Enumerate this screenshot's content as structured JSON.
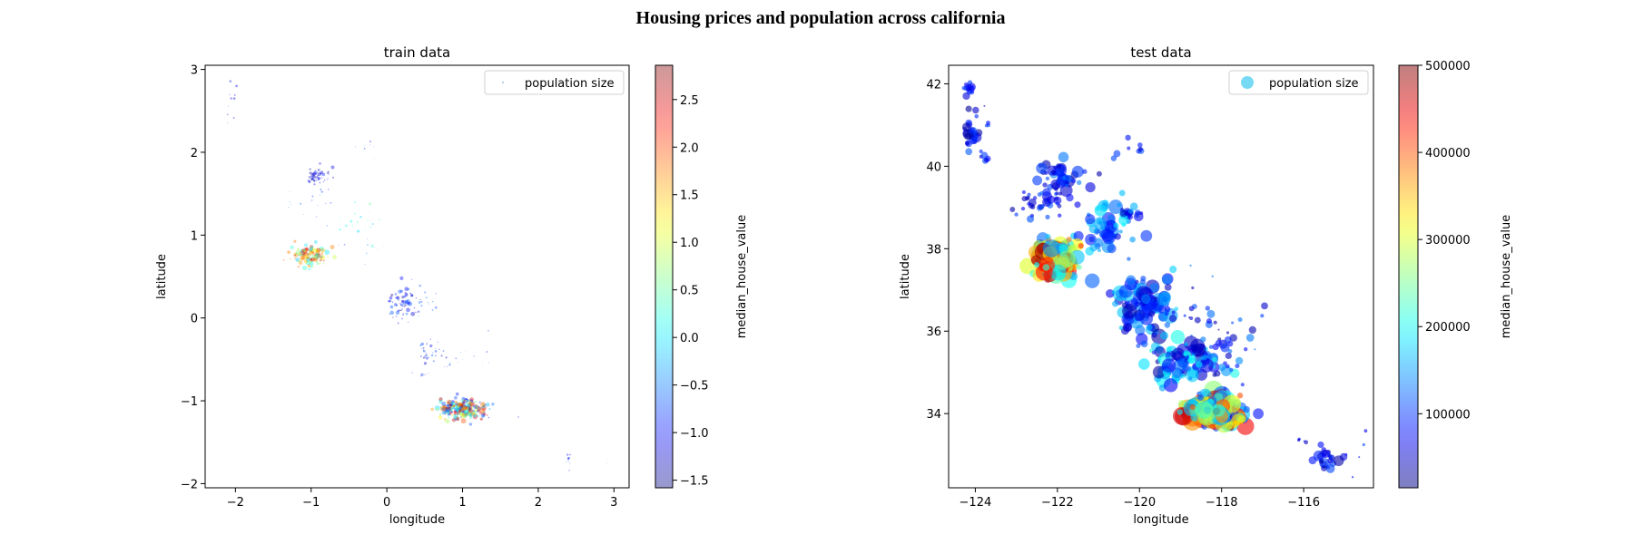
{
  "suptitle": "Housing prices and population across california",
  "colorbar_cmap": "jet",
  "chart_data": [
    {
      "type": "scatter",
      "title": "train data",
      "xlabel": "longitude",
      "ylabel": "latitude",
      "xlim": [
        -2.4,
        3.2
      ],
      "ylim": [
        -2.05,
        3.05
      ],
      "xticks": [
        -2,
        -1,
        0,
        1,
        2,
        3
      ],
      "yticks": [
        -2,
        -1,
        0,
        1,
        2,
        3
      ],
      "xtick_labels": [
        "−2",
        "−1",
        "0",
        "1",
        "2",
        "3"
      ],
      "ytick_labels": [
        "−2",
        "−1",
        "0",
        "1",
        "2",
        "3"
      ],
      "legend": {
        "label": "population size",
        "placement": "top-right"
      },
      "colorbar": {
        "label": "median_house_value",
        "range": [
          -1.58,
          2.86
        ],
        "ticks": [
          -1.5,
          -1.0,
          -0.5,
          0.0,
          0.5,
          1.0,
          1.5,
          2.0,
          2.5
        ],
        "tick_labels": [
          "−1.5",
          "−1.0",
          "−0.5",
          "0.0",
          "0.5",
          "1.0",
          "1.5",
          "2.0",
          "2.5"
        ],
        "alpha": 0.4
      },
      "marker_alpha": 0.4,
      "clusters": [
        {
          "cx": -2.05,
          "cy": 2.6,
          "sx": 0.06,
          "sy": 0.2,
          "n": 10,
          "v": [
            -1.4,
            -0.8
          ],
          "s": [
            0.5,
            1.5
          ]
        },
        {
          "cx": -0.9,
          "cy": 1.7,
          "sx": 0.08,
          "sy": 0.06,
          "n": 40,
          "v": [
            -1.5,
            -0.9
          ],
          "s": [
            0.6,
            2.2
          ]
        },
        {
          "cx": -0.85,
          "cy": 1.45,
          "sx": 0.1,
          "sy": 0.15,
          "n": 14,
          "v": [
            -1.3,
            -0.5
          ],
          "s": [
            0.4,
            1.2
          ]
        },
        {
          "cx": -1.2,
          "cy": 1.35,
          "sx": 0.15,
          "sy": 0.12,
          "n": 8,
          "v": [
            -1.0,
            0.0
          ],
          "s": [
            0.3,
            1.0
          ]
        },
        {
          "cx": -0.35,
          "cy": 1.15,
          "sx": 0.12,
          "sy": 0.1,
          "n": 22,
          "v": [
            -0.3,
            0.5
          ],
          "s": [
            0.5,
            1.5
          ]
        },
        {
          "cx": -0.25,
          "cy": 2.05,
          "sx": 0.1,
          "sy": 0.06,
          "n": 8,
          "v": [
            -1.3,
            -0.6
          ],
          "s": [
            0.3,
            1.0
          ]
        },
        {
          "cx": -1.0,
          "cy": 0.75,
          "sx": 0.12,
          "sy": 0.06,
          "n": 140,
          "v": [
            -0.3,
            2.8
          ],
          "s": [
            0.8,
            2.8
          ]
        },
        {
          "cx": -0.3,
          "cy": 0.85,
          "sx": 0.15,
          "sy": 0.1,
          "n": 10,
          "v": [
            -1.2,
            -0.4
          ],
          "s": [
            0.3,
            1.0
          ]
        },
        {
          "cx": 0.2,
          "cy": 0.2,
          "sx": 0.1,
          "sy": 0.1,
          "n": 65,
          "v": [
            -1.55,
            -0.6
          ],
          "s": [
            0.6,
            2.5
          ]
        },
        {
          "cx": 0.5,
          "cy": 0.2,
          "sx": 0.1,
          "sy": 0.08,
          "n": 15,
          "v": [
            -1.2,
            -0.2
          ],
          "s": [
            0.4,
            1.3
          ]
        },
        {
          "cx": 0.55,
          "cy": -0.45,
          "sx": 0.1,
          "sy": 0.12,
          "n": 35,
          "v": [
            -1.4,
            -0.5
          ],
          "s": [
            0.5,
            1.8
          ]
        },
        {
          "cx": 0.85,
          "cy": -0.55,
          "sx": 0.15,
          "sy": 0.08,
          "n": 10,
          "v": [
            -1.2,
            -0.3
          ],
          "s": [
            0.3,
            1.0
          ]
        },
        {
          "cx": 1.25,
          "cy": -0.4,
          "sx": 0.05,
          "sy": 0.08,
          "n": 6,
          "v": [
            -1.3,
            -0.7
          ],
          "s": [
            0.3,
            1.0
          ]
        },
        {
          "cx": 1.0,
          "cy": -1.1,
          "sx": 0.16,
          "sy": 0.06,
          "n": 260,
          "v": [
            -1.2,
            2.8
          ],
          "s": [
            0.8,
            3.0
          ]
        },
        {
          "cx": 2.4,
          "cy": -1.72,
          "sx": 0.03,
          "sy": 0.06,
          "n": 10,
          "v": [
            -1.3,
            -0.8
          ],
          "s": [
            0.4,
            1.2
          ]
        },
        {
          "cx": 2.9,
          "cy": -1.75,
          "sx": 0.03,
          "sy": 0.02,
          "n": 2,
          "v": [
            -1.2,
            -1.0
          ],
          "s": [
            0.3,
            0.6
          ]
        }
      ]
    },
    {
      "type": "scatter",
      "title": "test data",
      "xlabel": "longitude",
      "ylabel": "latitude",
      "xlim": [
        -124.65,
        -114.3
      ],
      "ylim": [
        32.2,
        42.45
      ],
      "xticks": [
        -124,
        -122,
        -120,
        -118,
        -116
      ],
      "yticks": [
        34,
        36,
        38,
        40,
        42
      ],
      "xtick_labels": [
        "−124",
        "−122",
        "−120",
        "−118",
        "−116"
      ],
      "ytick_labels": [
        "34",
        "36",
        "38",
        "40",
        "42"
      ],
      "legend": {
        "label": "population size",
        "placement": "top-right"
      },
      "colorbar": {
        "label": "median_house_value",
        "range": [
          14999,
          500001
        ],
        "ticks": [
          100000,
          200000,
          300000,
          400000,
          500000
        ],
        "tick_labels": [
          "100000",
          "200000",
          "300000",
          "400000",
          "500000"
        ],
        "alpha": 0.5
      },
      "marker_alpha": 0.6,
      "clusters": [
        {
          "cx": -124.15,
          "cy": 41.8,
          "sx": 0.05,
          "sy": 0.12,
          "n": 12,
          "v": [
            30000,
            110000
          ],
          "s": [
            2,
            5
          ]
        },
        {
          "cx": -124.1,
          "cy": 40.8,
          "sx": 0.1,
          "sy": 0.25,
          "n": 25,
          "v": [
            25000,
            120000
          ],
          "s": [
            2,
            6
          ]
        },
        {
          "cx": -123.8,
          "cy": 40.15,
          "sx": 0.08,
          "sy": 0.1,
          "n": 6,
          "v": [
            40000,
            110000
          ],
          "s": [
            2,
            4
          ]
        },
        {
          "cx": -123.7,
          "cy": 41.3,
          "sx": 0.15,
          "sy": 0.3,
          "n": 4,
          "v": [
            40000,
            110000
          ],
          "s": [
            1,
            3
          ]
        },
        {
          "cx": -122.6,
          "cy": 39.0,
          "sx": 0.25,
          "sy": 0.15,
          "n": 22,
          "v": [
            30000,
            120000
          ],
          "s": [
            2,
            5
          ]
        },
        {
          "cx": -121.9,
          "cy": 39.6,
          "sx": 0.35,
          "sy": 0.25,
          "n": 55,
          "v": [
            30000,
            140000
          ],
          "s": [
            2,
            7
          ]
        },
        {
          "cx": -122.1,
          "cy": 39.15,
          "sx": 0.15,
          "sy": 0.1,
          "n": 6,
          "v": [
            40000,
            120000
          ],
          "s": [
            2,
            6
          ]
        },
        {
          "cx": -120.8,
          "cy": 38.5,
          "sx": 0.3,
          "sy": 0.3,
          "n": 60,
          "v": [
            60000,
            200000
          ],
          "s": [
            2,
            8
          ]
        },
        {
          "cx": -120.2,
          "cy": 38.85,
          "sx": 0.2,
          "sy": 0.12,
          "n": 12,
          "v": [
            40000,
            180000
          ],
          "s": [
            2,
            6
          ]
        },
        {
          "cx": -120.4,
          "cy": 40.35,
          "sx": 0.25,
          "sy": 0.1,
          "n": 8,
          "v": [
            40000,
            120000
          ],
          "s": [
            2,
            4
          ]
        },
        {
          "cx": -122.05,
          "cy": 37.75,
          "sx": 0.25,
          "sy": 0.22,
          "n": 180,
          "v": [
            120000,
            500000
          ],
          "s": [
            3,
            10
          ]
        },
        {
          "cx": -119.8,
          "cy": 36.6,
          "sx": 0.45,
          "sy": 0.35,
          "n": 110,
          "v": [
            30000,
            180000
          ],
          "s": [
            2,
            9
          ]
        },
        {
          "cx": -118.4,
          "cy": 36.2,
          "sx": 0.55,
          "sy": 0.6,
          "n": 25,
          "v": [
            30000,
            150000
          ],
          "s": [
            1,
            5
          ]
        },
        {
          "cx": -118.9,
          "cy": 35.3,
          "sx": 0.5,
          "sy": 0.25,
          "n": 100,
          "v": [
            30000,
            220000
          ],
          "s": [
            2,
            8
          ]
        },
        {
          "cx": -117.9,
          "cy": 35.4,
          "sx": 0.3,
          "sy": 0.3,
          "n": 15,
          "v": [
            40000,
            160000
          ],
          "s": [
            2,
            6
          ]
        },
        {
          "cx": -118.2,
          "cy": 34.05,
          "sx": 0.35,
          "sy": 0.18,
          "n": 250,
          "v": [
            80000,
            500000
          ],
          "s": [
            3,
            11
          ]
        },
        {
          "cx": -117.05,
          "cy": 36.4,
          "sx": 0.02,
          "sy": 0.02,
          "n": 1,
          "v": [
            90000,
            110000
          ],
          "s": [
            2,
            3
          ]
        },
        {
          "cx": -115.5,
          "cy": 32.9,
          "sx": 0.2,
          "sy": 0.15,
          "n": 25,
          "v": [
            30000,
            110000
          ],
          "s": [
            2,
            6
          ]
        },
        {
          "cx": -115.9,
          "cy": 33.35,
          "sx": 0.1,
          "sy": 0.05,
          "n": 5,
          "v": [
            40000,
            90000
          ],
          "s": [
            1,
            3
          ]
        },
        {
          "cx": -114.8,
          "cy": 33.2,
          "sx": 0.2,
          "sy": 0.3,
          "n": 5,
          "v": [
            40000,
            110000
          ],
          "s": [
            1,
            3
          ]
        }
      ]
    }
  ]
}
